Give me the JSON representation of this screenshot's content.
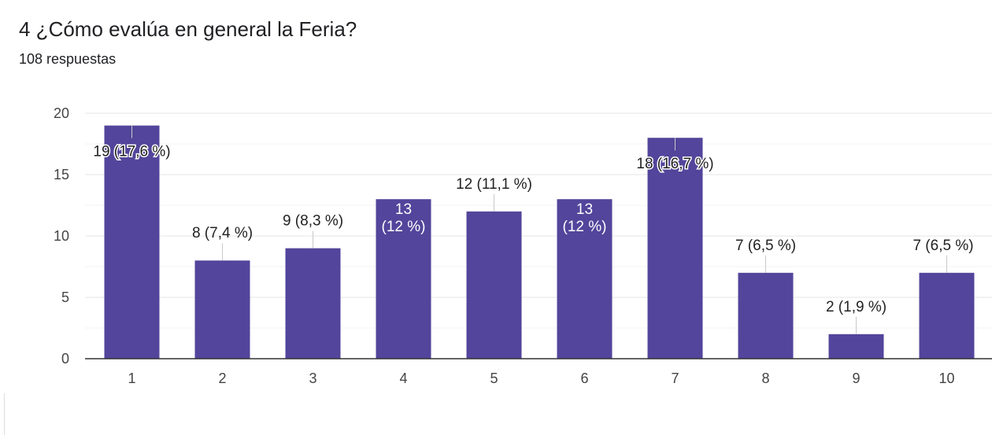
{
  "header": {
    "title": "4 ¿Cómo evalúa en general la Feria?",
    "responses": "108 respuestas"
  },
  "colors": {
    "bar": "#52459b",
    "grid": "#ebebeb",
    "axis": "#333333",
    "label_outside": "#222222",
    "label_inside": "#ffffff"
  },
  "chart_data": {
    "type": "bar",
    "categories": [
      "1",
      "2",
      "3",
      "4",
      "5",
      "6",
      "7",
      "8",
      "9",
      "10"
    ],
    "values": [
      19,
      8,
      9,
      13,
      12,
      13,
      18,
      7,
      2,
      7
    ],
    "data_labels": [
      "19 (17,6 %)",
      "8 (7,4 %)",
      "9 (8,3 %)",
      "13 (12 %)",
      "12 (11,1 %)",
      "13 (12 %)",
      "18 (16,7 %)",
      "7 (6,5 %)",
      "2 (1,9 %)",
      "7 (6,5 %)"
    ],
    "title": "4 ¿Cómo evalúa en general la Feria?",
    "subtitle": "108 respuestas",
    "xlabel": "",
    "ylabel": "",
    "ylim": [
      0,
      20
    ],
    "yticks": [
      0,
      5,
      10,
      15,
      20
    ],
    "grid": true,
    "legend": "none"
  }
}
